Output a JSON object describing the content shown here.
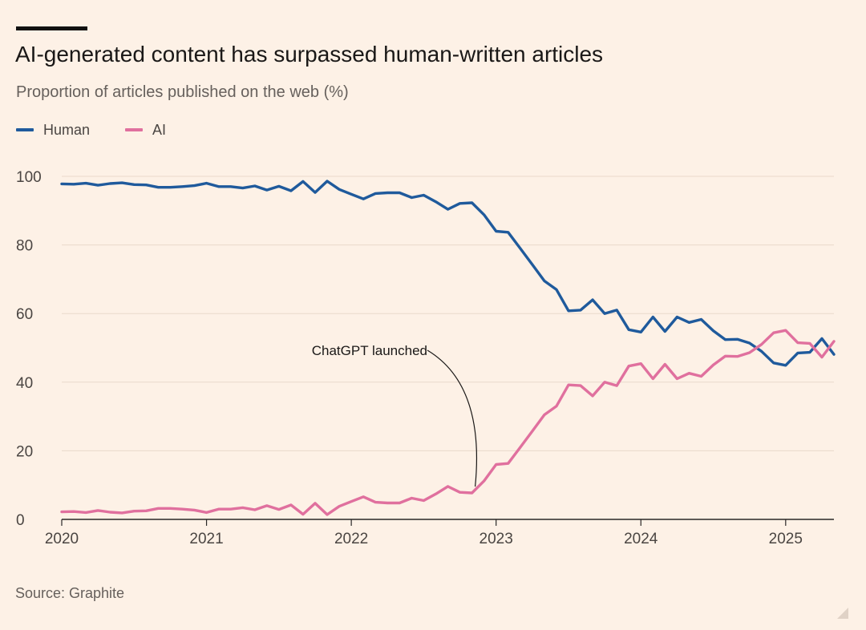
{
  "title": "AI-generated content has surpassed human-written articles",
  "subtitle": "Proportion of articles published on the web (%)",
  "source": "Source: Graphite",
  "colors": {
    "human": "#1F5A9C",
    "ai": "#E0709E",
    "background": "#FDF1E6",
    "grid": "#EAD9CB",
    "axis": "#2A2827"
  },
  "chart_data": {
    "type": "line",
    "title": "AI-generated content has surpassed human-written articles",
    "ylabel": "Proportion of articles published on the web (%)",
    "xlabel": "",
    "x_start": "2020-01",
    "x_interval": "month",
    "xlim": [
      "2020-01",
      "2025-05"
    ],
    "ylim": [
      0,
      100
    ],
    "xticks": [
      "2020",
      "2021",
      "2022",
      "2023",
      "2024",
      "2025"
    ],
    "yticks": [
      0,
      20,
      40,
      60,
      80,
      100
    ],
    "grid": "horizontal",
    "legend": "top-left",
    "series": [
      {
        "name": "Human",
        "color": "#1F5A9C",
        "values": [
          97.8,
          97.7,
          98.0,
          97.4,
          97.9,
          98.1,
          97.6,
          97.5,
          96.8,
          96.8,
          97.0,
          97.3,
          98.0,
          97.0,
          97.0,
          96.6,
          97.2,
          96.0,
          97.1,
          95.8,
          98.5,
          95.3,
          98.6,
          96.2,
          94.8,
          93.4,
          95.0,
          95.2,
          95.2,
          93.8,
          94.5,
          92.6,
          90.4,
          92.1,
          92.3,
          88.8,
          84.0,
          83.7,
          79.0,
          74.3,
          69.5,
          67.0,
          60.8,
          61.0,
          64.0,
          60.0,
          61.0,
          55.3,
          54.6,
          59.0,
          54.8,
          59.0,
          57.4,
          58.3,
          55.0,
          52.4,
          52.5,
          51.4,
          49.0,
          45.6,
          44.9,
          48.5,
          48.7,
          52.7,
          48.1
        ]
      },
      {
        "name": "AI",
        "color": "#E0709E",
        "values": [
          2.2,
          2.3,
          2.0,
          2.6,
          2.1,
          1.9,
          2.4,
          2.5,
          3.2,
          3.2,
          3.0,
          2.7,
          2.0,
          3.0,
          3.0,
          3.4,
          2.8,
          4.0,
          2.9,
          4.2,
          1.5,
          4.7,
          1.4,
          3.8,
          5.2,
          6.6,
          5.0,
          4.8,
          4.8,
          6.2,
          5.5,
          7.4,
          9.6,
          7.9,
          7.7,
          11.2,
          16.0,
          16.3,
          21.0,
          25.7,
          30.5,
          33.0,
          39.2,
          39.0,
          36.0,
          40.0,
          39.0,
          44.7,
          45.4,
          41.0,
          45.2,
          41.0,
          42.6,
          41.7,
          45.0,
          47.6,
          47.5,
          48.6,
          51.0,
          54.4,
          55.1,
          51.5,
          51.3,
          47.3,
          51.9
        ]
      }
    ],
    "annotations": [
      {
        "text": "ChatGPT launched",
        "x": "2022-11",
        "y": 7.7
      }
    ]
  }
}
